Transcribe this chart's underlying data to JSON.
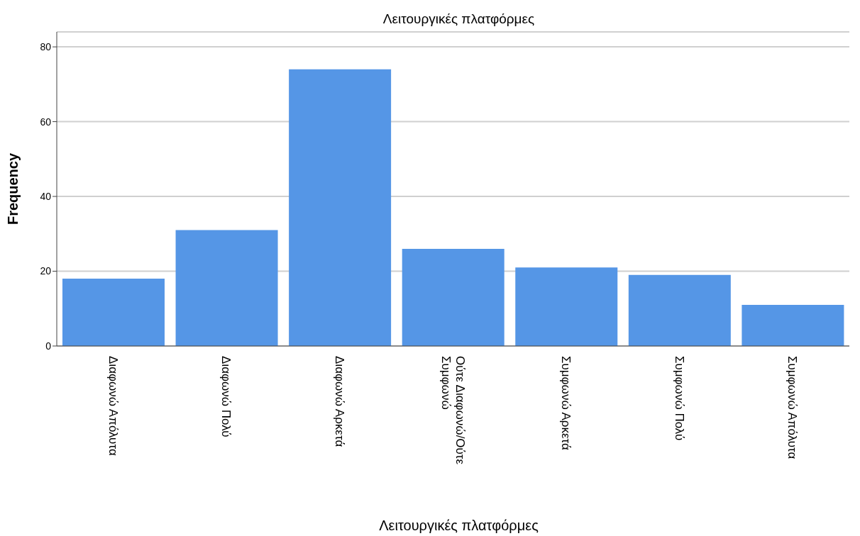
{
  "chart_data": {
    "type": "bar",
    "title": "Λειτουργικές πλατφόρμες",
    "xlabel": "Λειτουργικές πλατφόρμες",
    "ylabel": "Frequency",
    "categories": [
      "Διαφωνώ Απόλυτα",
      "Διαφωνώ Πολύ",
      "Διαφωνώ Αρκετά",
      "Ούτε Διαφωνώ/Ούτε Συμφωνώ",
      "Συμφωνώ Αρκετά",
      "Συμφωνώ Πολύ",
      "Συμφωνώ Απόλυτα"
    ],
    "values": [
      18,
      31,
      74,
      26,
      21,
      19,
      11
    ],
    "color": "#5596e6",
    "ylim": [
      0,
      84
    ],
    "yticks": [
      0,
      20,
      40,
      60,
      80
    ],
    "grid": "y",
    "legend": false
  }
}
